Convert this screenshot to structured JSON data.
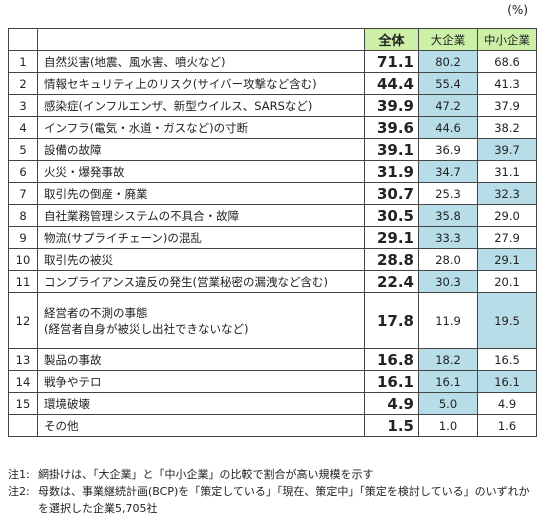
{
  "unit": "(%)",
  "headers": {
    "all": "全体",
    "large": "大企業",
    "sme": "中小企業"
  },
  "rows": [
    {
      "no": "1",
      "item": "自然災害(地震、風水害、噴火など)",
      "all": "71.1",
      "large": "80.2",
      "sme": "68.6",
      "highlight": "large"
    },
    {
      "no": "2",
      "item": "情報セキュリティ上のリスク(サイバー攻撃など含む)",
      "all": "44.4",
      "large": "55.4",
      "sme": "41.3",
      "highlight": "large"
    },
    {
      "no": "3",
      "item": "感染症(インフルエンザ、新型ウイルス、SARSなど)",
      "all": "39.9",
      "large": "47.2",
      "sme": "37.9",
      "highlight": "large"
    },
    {
      "no": "4",
      "item": "インフラ(電気・水道・ガスなど)の寸断",
      "all": "39.6",
      "large": "44.6",
      "sme": "38.2",
      "highlight": "large"
    },
    {
      "no": "5",
      "item": "設備の故障",
      "all": "39.1",
      "large": "36.9",
      "sme": "39.7",
      "highlight": "sme"
    },
    {
      "no": "6",
      "item": "火災・爆発事故",
      "all": "31.9",
      "large": "34.7",
      "sme": "31.1",
      "highlight": "large"
    },
    {
      "no": "7",
      "item": "取引先の倒産・廃業",
      "all": "30.7",
      "large": "25.3",
      "sme": "32.3",
      "highlight": "sme"
    },
    {
      "no": "8",
      "item": "自社業務管理システムの不具合・故障",
      "all": "30.5",
      "large": "35.8",
      "sme": "29.0",
      "highlight": "large"
    },
    {
      "no": "9",
      "item": "物流(サプライチェーン)の混乱",
      "all": "29.1",
      "large": "33.3",
      "sme": "27.9",
      "highlight": "large"
    },
    {
      "no": "10",
      "item": "取引先の被災",
      "all": "28.8",
      "large": "28.0",
      "sme": "29.1",
      "highlight": "sme"
    },
    {
      "no": "11",
      "item": "コンプライアンス違反の発生(営業秘密の漏洩など含む)",
      "all": "22.4",
      "large": "30.3",
      "sme": "20.1",
      "highlight": "large"
    },
    {
      "no": "12",
      "item": "経営者の不測の事態\n(経営者自身が被災し出社できないなど)",
      "all": "17.8",
      "large": "11.9",
      "sme": "19.5",
      "highlight": "sme",
      "tall": true
    },
    {
      "no": "13",
      "item": "製品の事故",
      "all": "16.8",
      "large": "18.2",
      "sme": "16.5",
      "highlight": "large"
    },
    {
      "no": "14",
      "item": "戦争やテロ",
      "all": "16.1",
      "large": "16.1",
      "sme": "16.1",
      "highlight": "both"
    },
    {
      "no": "15",
      "item": "環境破壊",
      "all": "4.9",
      "large": "5.0",
      "sme": "4.9",
      "highlight": "large"
    },
    {
      "no": "",
      "item": "その他",
      "all": "1.5",
      "large": "1.0",
      "sme": "1.6",
      "highlight": "none"
    }
  ],
  "notes": [
    {
      "label": "注1:",
      "text": "網掛けは、「大企業」と「中小企業」の比較で割合が高い規模を示す"
    },
    {
      "label": "注2:",
      "text": "母数は、事業継続計画(BCP)を「策定している」「現在、策定中」「策定を検討している」のいずれかを選択した企業5,705社"
    }
  ],
  "colors": {
    "header_bg": "#ccf0a8",
    "highlight_bg": "#b7dde8",
    "border": "#444444"
  }
}
